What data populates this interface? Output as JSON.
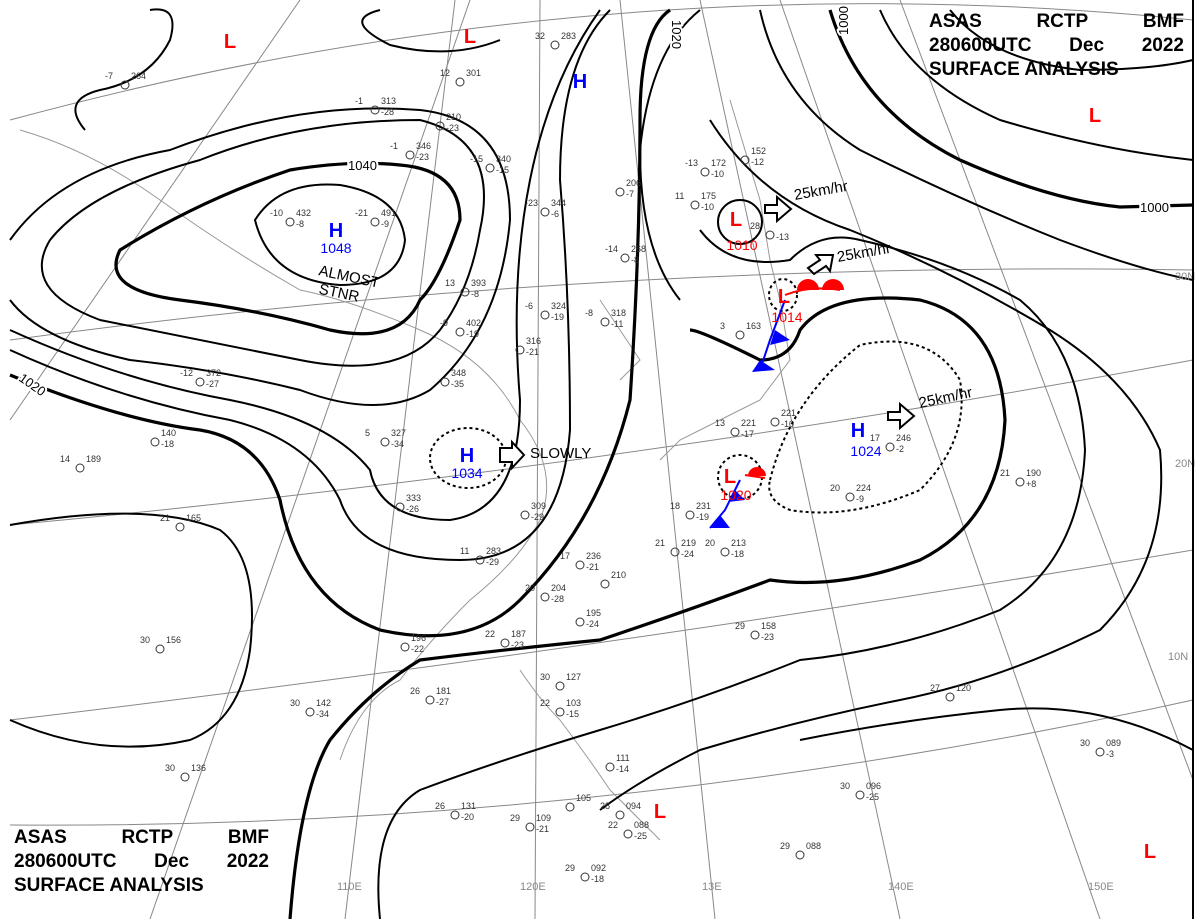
{
  "header": {
    "line1": [
      "ASAS",
      "RCTP",
      "BMF"
    ],
    "line2": [
      "280600UTC",
      "Dec",
      "2022"
    ],
    "line3": "SURFACE ANALYSIS"
  },
  "colors": {
    "high": "#0000ff",
    "low": "#ff0000",
    "isobar": "#000000",
    "graticule": "#888888",
    "coast": "#999999"
  },
  "latitude_labels": [
    "30N",
    "20N",
    "10N"
  ],
  "longitude_labels": [
    "110E",
    "120E",
    "13E",
    "140E",
    "150E"
  ],
  "isobar_labels": [
    "1040",
    "1020",
    "1020",
    "1000",
    "1000"
  ],
  "pressure_centers": [
    {
      "type": "L",
      "value": ""
    },
    {
      "type": "L",
      "value": ""
    },
    {
      "type": "H",
      "value": ""
    },
    {
      "type": "L",
      "value": ""
    },
    {
      "type": "H",
      "value": "1048"
    },
    {
      "type": "H",
      "value": "1034"
    },
    {
      "type": "L",
      "value": "1010"
    },
    {
      "type": "L",
      "value": "1014"
    },
    {
      "type": "H",
      "value": "1024"
    },
    {
      "type": "L",
      "value": "1020"
    },
    {
      "type": "L",
      "value": ""
    },
    {
      "type": "L",
      "value": ""
    }
  ],
  "movements": [
    "ALMOST\nSTNR",
    "SLOWLY",
    "25km/hr",
    "25km/hr",
    "25km/hr"
  ],
  "stations": [
    {
      "t": "32",
      "p": "283",
      "d": ""
    },
    {
      "t": "12",
      "p": "301",
      "d": ""
    },
    {
      "t": "-1",
      "p": "313",
      "d": "-28"
    },
    {
      "t": "-7",
      "p": "264",
      "d": ""
    },
    {
      "t": "-1",
      "p": "346",
      "d": "-23"
    },
    {
      "t": "-15",
      "p": "340",
      "d": "-15"
    },
    {
      "t": "-13",
      "p": "172",
      "d": "-10"
    },
    {
      "t": "11",
      "p": "175",
      "d": "-10"
    },
    {
      "t": "",
      "p": "206",
      "d": "-7"
    },
    {
      "t": "-23",
      "p": "344",
      "d": "-6"
    },
    {
      "t": "-10",
      "p": "432",
      "d": "-8"
    },
    {
      "t": "-21",
      "p": "491",
      "d": "-9"
    },
    {
      "t": "",
      "p": "152",
      "d": "-12"
    },
    {
      "t": "-14",
      "p": "268",
      "d": "-8"
    },
    {
      "t": "13",
      "p": "393",
      "d": "-8"
    },
    {
      "t": "-9",
      "p": "402",
      "d": "-19"
    },
    {
      "t": "-6",
      "p": "324",
      "d": "-19"
    },
    {
      "t": "-8",
      "p": "318",
      "d": "-11"
    },
    {
      "t": "",
      "p": "316",
      "d": "-21"
    },
    {
      "t": "",
      "p": "348",
      "d": "-35"
    },
    {
      "t": "-12",
      "p": "372",
      "d": "-27"
    },
    {
      "t": "5",
      "p": "327",
      "d": "-34"
    },
    {
      "t": "",
      "p": "140",
      "d": "-18"
    },
    {
      "t": "14",
      "p": "189",
      "d": ""
    },
    {
      "t": "21",
      "p": "165",
      "d": ""
    },
    {
      "t": "",
      "p": "333",
      "d": "-26"
    },
    {
      "t": "",
      "p": "309",
      "d": "-29"
    },
    {
      "t": "11",
      "p": "283",
      "d": "-29"
    },
    {
      "t": "18",
      "p": "231",
      "d": "-19"
    },
    {
      "t": "21",
      "p": "219",
      "d": "-24"
    },
    {
      "t": "20",
      "p": "213",
      "d": "-18"
    },
    {
      "t": "17",
      "p": "236",
      "d": "-21"
    },
    {
      "t": "",
      "p": "210",
      "d": ""
    },
    {
      "t": "20",
      "p": "204",
      "d": "-28"
    },
    {
      "t": "",
      "p": "195",
      "d": "-24"
    },
    {
      "t": "22",
      "p": "187",
      "d": "-23"
    },
    {
      "t": "",
      "p": "196",
      "d": "-22"
    },
    {
      "t": "30",
      "p": "156",
      "d": ""
    },
    {
      "t": "29",
      "p": "158",
      "d": "-23"
    },
    {
      "t": "26",
      "p": "181",
      "d": "-27"
    },
    {
      "t": "30",
      "p": "142",
      "d": "-34"
    },
    {
      "t": "30",
      "p": "127",
      "d": ""
    },
    {
      "t": "22",
      "p": "103",
      "d": "-15"
    },
    {
      "t": "27",
      "p": "120",
      "d": ""
    },
    {
      "t": "30",
      "p": "089",
      "d": "-3"
    },
    {
      "t": "30",
      "p": "136",
      "d": ""
    },
    {
      "t": "30",
      "p": "096",
      "d": "-25"
    },
    {
      "t": "",
      "p": "111",
      "d": "-14"
    },
    {
      "t": "",
      "p": "105",
      "d": ""
    },
    {
      "t": "28",
      "p": "094",
      "d": ""
    },
    {
      "t": "26",
      "p": "131",
      "d": "-20"
    },
    {
      "t": "29",
      "p": "109",
      "d": "-21"
    },
    {
      "t": "22",
      "p": "088",
      "d": "-25"
    },
    {
      "t": "29",
      "p": "088",
      "d": ""
    },
    {
      "t": "29",
      "p": "092",
      "d": "-18"
    },
    {
      "t": "21",
      "p": "190",
      "d": "+8"
    },
    {
      "t": "20",
      "p": "224",
      "d": "-9"
    },
    {
      "t": "17",
      "p": "246",
      "d": "-2"
    },
    {
      "t": "",
      "p": "221",
      "d": "-10"
    },
    {
      "t": "13",
      "p": "221",
      "d": "-17"
    },
    {
      "t": "3",
      "p": "163",
      "d": ""
    },
    {
      "t": "28",
      "p": "",
      "d": "-13"
    },
    {
      "t": "",
      "p": "210",
      "d": "-23"
    }
  ]
}
